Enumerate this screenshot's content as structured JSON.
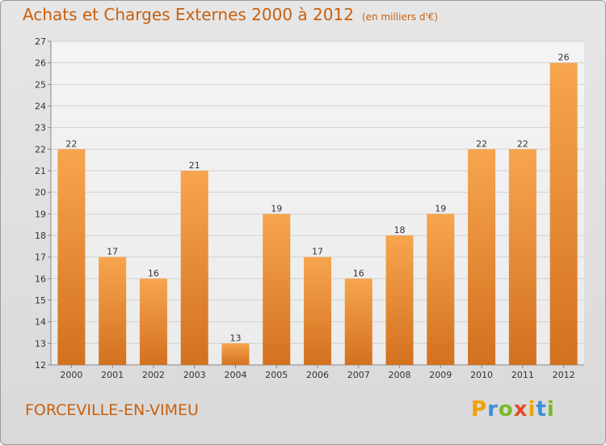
{
  "header": {
    "title": "Achats et Charges Externes 2000 à 2012",
    "subtitle": "(en milliers d'€)"
  },
  "footer": {
    "commune": "FORCEVILLE-EN-VIMEU",
    "logo": "Proxiti"
  },
  "colors": {
    "title": "#c8600e",
    "bar_top": "#f7a54e",
    "bar_bottom": "#d3711f",
    "logo_letters": [
      "#f0a000",
      "#3c8fd8",
      "#7ab827",
      "#e34d2b",
      "#f0a000",
      "#3c8fd8",
      "#7ab827"
    ]
  },
  "chart_data": {
    "type": "bar",
    "title": "Achats et Charges Externes 2000 à 2012",
    "subtitle": "(en milliers d'€)",
    "categories": [
      "2000",
      "2001",
      "2002",
      "2003",
      "2004",
      "2005",
      "2006",
      "2007",
      "2008",
      "2009",
      "2010",
      "2011",
      "2012"
    ],
    "values": [
      22,
      17,
      16,
      21,
      13,
      19,
      17,
      16,
      18,
      19,
      22,
      22,
      26
    ],
    "ylim": [
      12,
      27
    ],
    "yticks": [
      12,
      13,
      14,
      15,
      16,
      17,
      18,
      19,
      20,
      21,
      22,
      23,
      24,
      25,
      26,
      27
    ],
    "grid": true,
    "legend": "none"
  }
}
